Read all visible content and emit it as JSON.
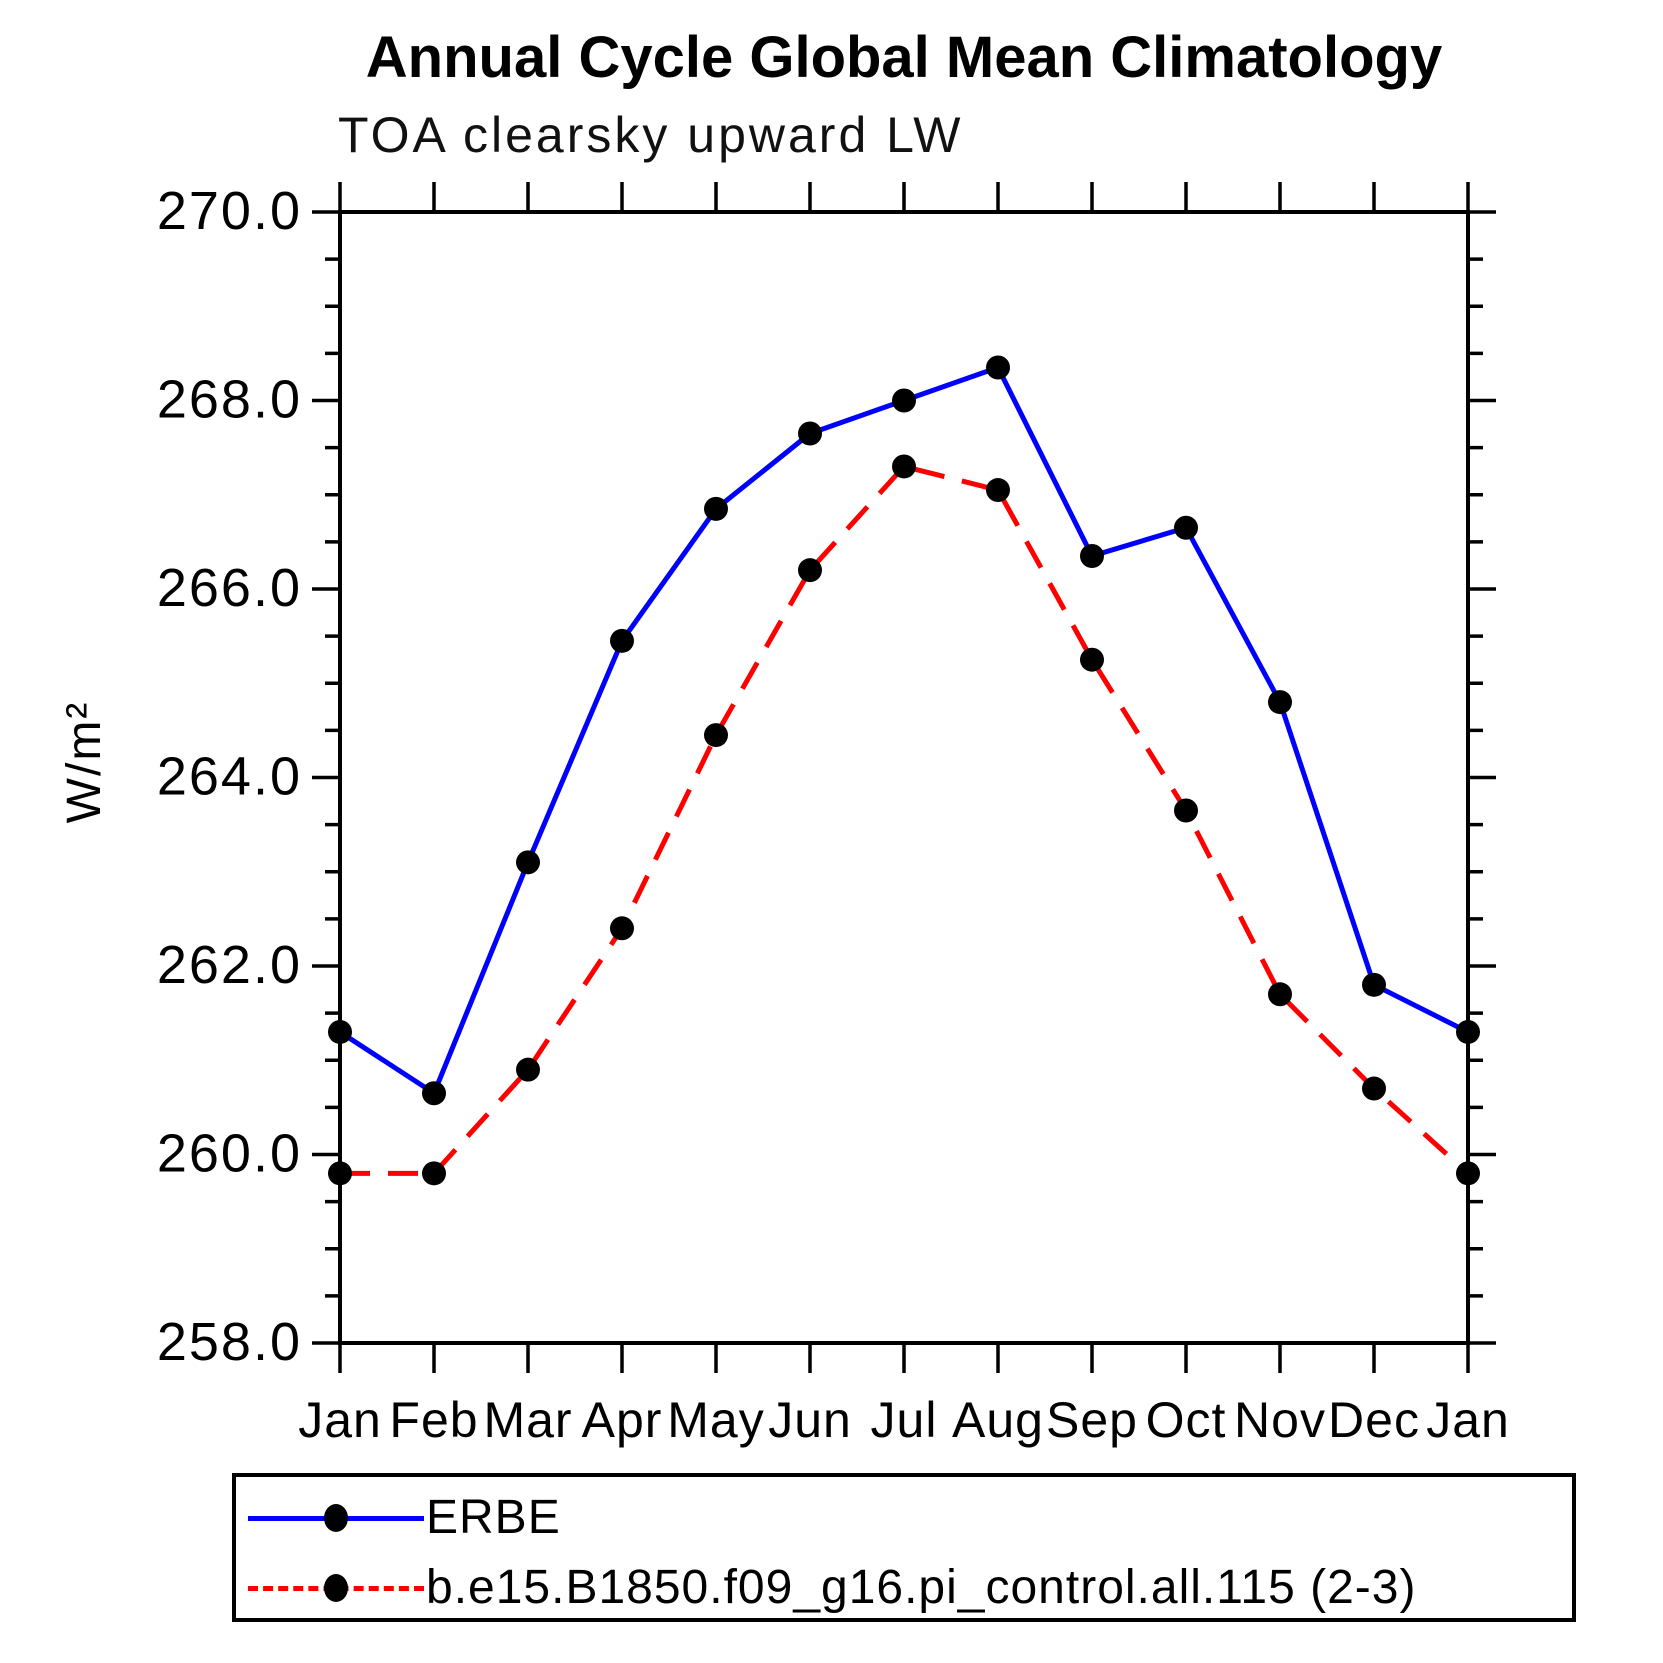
{
  "title": "Annual Cycle Global Mean Climatology",
  "subtitle": "TOA clearsky upward LW",
  "y_axis": {
    "label": "W/m²",
    "tick_labels": [
      "270.0",
      "268.0",
      "266.0",
      "264.0",
      "262.0",
      "260.0",
      "258.0"
    ],
    "min": 258.0,
    "max": 270.0,
    "major_step": 2.0,
    "minor_step": 0.5
  },
  "x_axis": {
    "tick_labels": [
      "Jan",
      "Feb",
      "Mar",
      "Apr",
      "May",
      "Jun",
      "Jul",
      "Aug",
      "Sep",
      "Oct",
      "Nov",
      "Dec",
      "Jan"
    ]
  },
  "legend": {
    "entries": [
      {
        "label": "ERBE",
        "color": "#0000ff",
        "style": "solid"
      },
      {
        "label": "b.e15.B1850.f09_g16.pi_control.all.115 (2-3)",
        "color": "#ff0000",
        "style": "dashed"
      }
    ]
  },
  "chart_data": {
    "type": "line",
    "title": "Annual Cycle Global Mean Climatology",
    "subtitle": "TOA clearsky upward LW",
    "ylabel": "W/m²",
    "ylim": [
      258.0,
      270.0
    ],
    "y_major_step": 2.0,
    "y_minor_step": 0.5,
    "grid": false,
    "legend_position": "bottom",
    "categories": [
      "Jan",
      "Feb",
      "Mar",
      "Apr",
      "May",
      "Jun",
      "Jul",
      "Aug",
      "Sep",
      "Oct",
      "Nov",
      "Dec",
      "Jan"
    ],
    "series": [
      {
        "name": "ERBE",
        "color": "#0000ff",
        "style": "solid",
        "marker": "filled-circle",
        "values": [
          261.3,
          260.65,
          263.1,
          265.45,
          266.85,
          267.65,
          268.0,
          268.35,
          266.35,
          266.65,
          264.8,
          261.8,
          261.3
        ]
      },
      {
        "name": "b.e15.B1850.f09_g16.pi_control.all.115 (2-3)",
        "color": "#ff0000",
        "style": "dashed",
        "marker": "filled-circle",
        "values": [
          259.8,
          259.8,
          260.9,
          262.4,
          264.45,
          266.2,
          267.3,
          267.05,
          265.25,
          263.65,
          261.7,
          260.7,
          259.8
        ]
      }
    ]
  }
}
